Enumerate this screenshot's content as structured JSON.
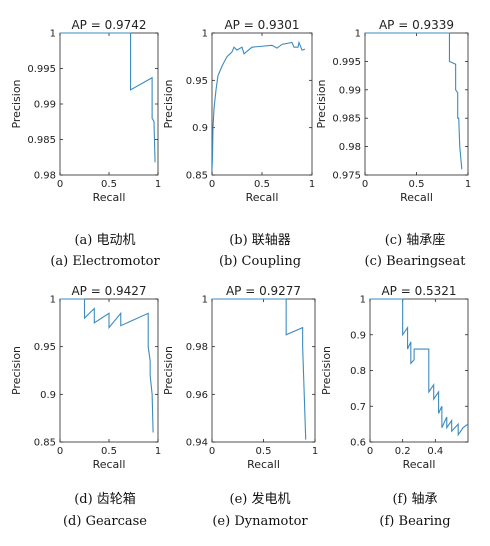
{
  "chart_data": [
    {
      "type": "line",
      "title": "AP = 0.9742",
      "xlabel": "Recall",
      "ylabel": "Precision",
      "xlim": [
        0,
        1
      ],
      "ylim": [
        0.98,
        1
      ],
      "xticks": [
        "0",
        "0.5",
        "1"
      ],
      "yticks": [
        "1",
        "0.995",
        "0.99",
        "0.985",
        "0.98"
      ],
      "grid": false,
      "color": "#3b8bbf",
      "caption_cn": "(a)  电动机",
      "caption_en": "(a) Electromotor",
      "series": [
        {
          "x": [
            0,
            0.72,
            0.72,
            0.94,
            0.94,
            0.96,
            0.96,
            0.97
          ],
          "y": [
            1,
            1,
            0.992,
            0.9937,
            0.988,
            0.9875,
            0.987,
            0.9818
          ]
        }
      ]
    },
    {
      "type": "line",
      "title": "AP = 0.9301",
      "xlabel": "Recall",
      "ylabel": "Precision",
      "xlim": [
        0,
        1
      ],
      "ylim": [
        0.85,
        1
      ],
      "xticks": [
        "0",
        "0.5",
        "1"
      ],
      "yticks": [
        "1",
        "0.95",
        "0.9",
        "0.85"
      ],
      "grid": false,
      "color": "#3b8bbf",
      "caption_cn": "(b)  联轴器",
      "caption_en": "(b) Coupling",
      "series": [
        {
          "x": [
            0,
            0.005,
            0.01,
            0.02,
            0.04,
            0.06,
            0.1,
            0.15,
            0.2,
            0.22,
            0.25,
            0.3,
            0.32,
            0.4,
            0.5,
            0.6,
            0.65,
            0.7,
            0.8,
            0.82,
            0.86,
            0.87,
            0.9,
            0.93
          ],
          "y": [
            0.855,
            0.87,
            0.9,
            0.92,
            0.94,
            0.955,
            0.965,
            0.975,
            0.98,
            0.985,
            0.982,
            0.985,
            0.978,
            0.985,
            0.986,
            0.987,
            0.984,
            0.988,
            0.99,
            0.985,
            0.985,
            0.99,
            0.982,
            0.983
          ]
        }
      ]
    },
    {
      "type": "line",
      "title": "AP = 0.9339",
      "xlabel": "Recall",
      "ylabel": "Precision",
      "xlim": [
        0,
        1
      ],
      "ylim": [
        0.975,
        1
      ],
      "xticks": [
        "0",
        "0.5",
        "1"
      ],
      "yticks": [
        "1",
        "0.995",
        "0.99",
        "0.985",
        "0.98",
        "0.975"
      ],
      "grid": false,
      "color": "#3b8bbf",
      "caption_cn": "(c)  轴承座",
      "caption_en": "(c) Bearingseat",
      "series": [
        {
          "x": [
            0,
            0.82,
            0.82,
            0.88,
            0.88,
            0.9,
            0.9,
            0.91,
            0.92,
            0.94
          ],
          "y": [
            1,
            1,
            0.995,
            0.9945,
            0.99,
            0.9895,
            0.985,
            0.985,
            0.98,
            0.976
          ]
        }
      ]
    },
    {
      "type": "line",
      "title": "AP = 0.9427",
      "xlabel": "Recall",
      "ylabel": "Precision",
      "xlim": [
        0,
        1
      ],
      "ylim": [
        0.85,
        1
      ],
      "xticks": [
        "0",
        "0.5",
        "1"
      ],
      "yticks": [
        "1",
        "0.95",
        "0.9",
        "0.85"
      ],
      "grid": false,
      "color": "#3b8bbf",
      "caption_cn": "(d)  齿轮箱",
      "caption_en": "(d) Gearcase",
      "series": [
        {
          "x": [
            0,
            0.25,
            0.25,
            0.35,
            0.35,
            0.5,
            0.5,
            0.62,
            0.62,
            0.9,
            0.9,
            0.92,
            0.92,
            0.94,
            0.95
          ],
          "y": [
            1,
            1,
            0.98,
            0.99,
            0.975,
            0.985,
            0.97,
            0.985,
            0.972,
            0.985,
            0.95,
            0.935,
            0.92,
            0.9,
            0.86
          ]
        }
      ]
    },
    {
      "type": "line",
      "title": "AP = 0.9277",
      "xlabel": "Recall",
      "ylabel": "Precision",
      "xlim": [
        0,
        1
      ],
      "ylim": [
        0.94,
        1
      ],
      "xticks": [
        "0",
        "0.5",
        "1"
      ],
      "yticks": [
        "1",
        "0.98",
        "0.96",
        "0.94"
      ],
      "grid": false,
      "color": "#3b8bbf",
      "caption_cn": "(e)  发电机",
      "caption_en": "(e) Dynamotor",
      "series": [
        {
          "x": [
            0,
            0.72,
            0.72,
            0.88,
            0.88,
            0.91
          ],
          "y": [
            1,
            1,
            0.985,
            0.988,
            0.98,
            0.941
          ]
        }
      ]
    },
    {
      "type": "line",
      "title": "AP = 0.5321",
      "xlabel": "Recall",
      "ylabel": "Precision",
      "xlim": [
        0,
        0.6
      ],
      "ylim": [
        0.6,
        1
      ],
      "xticks": [
        "0",
        "0.2",
        "0.4"
      ],
      "yticks": [
        "1",
        "0.9",
        "0.8",
        "0.7",
        "0.6"
      ],
      "grid": false,
      "color": "#3b8bbf",
      "caption_cn": "(f)  轴承",
      "caption_en": "(f) Bearing",
      "series": [
        {
          "x": [
            0,
            0.2,
            0.2,
            0.23,
            0.23,
            0.25,
            0.25,
            0.27,
            0.27,
            0.36,
            0.36,
            0.39,
            0.39,
            0.42,
            0.42,
            0.44,
            0.44,
            0.47,
            0.47,
            0.5,
            0.5,
            0.54,
            0.54,
            0.57,
            0.57,
            0.6
          ],
          "y": [
            1,
            1,
            0.9,
            0.92,
            0.86,
            0.88,
            0.82,
            0.83,
            0.86,
            0.86,
            0.74,
            0.76,
            0.72,
            0.74,
            0.68,
            0.7,
            0.64,
            0.67,
            0.64,
            0.66,
            0.63,
            0.65,
            0.62,
            0.64,
            0.64,
            0.65
          ]
        }
      ]
    }
  ]
}
